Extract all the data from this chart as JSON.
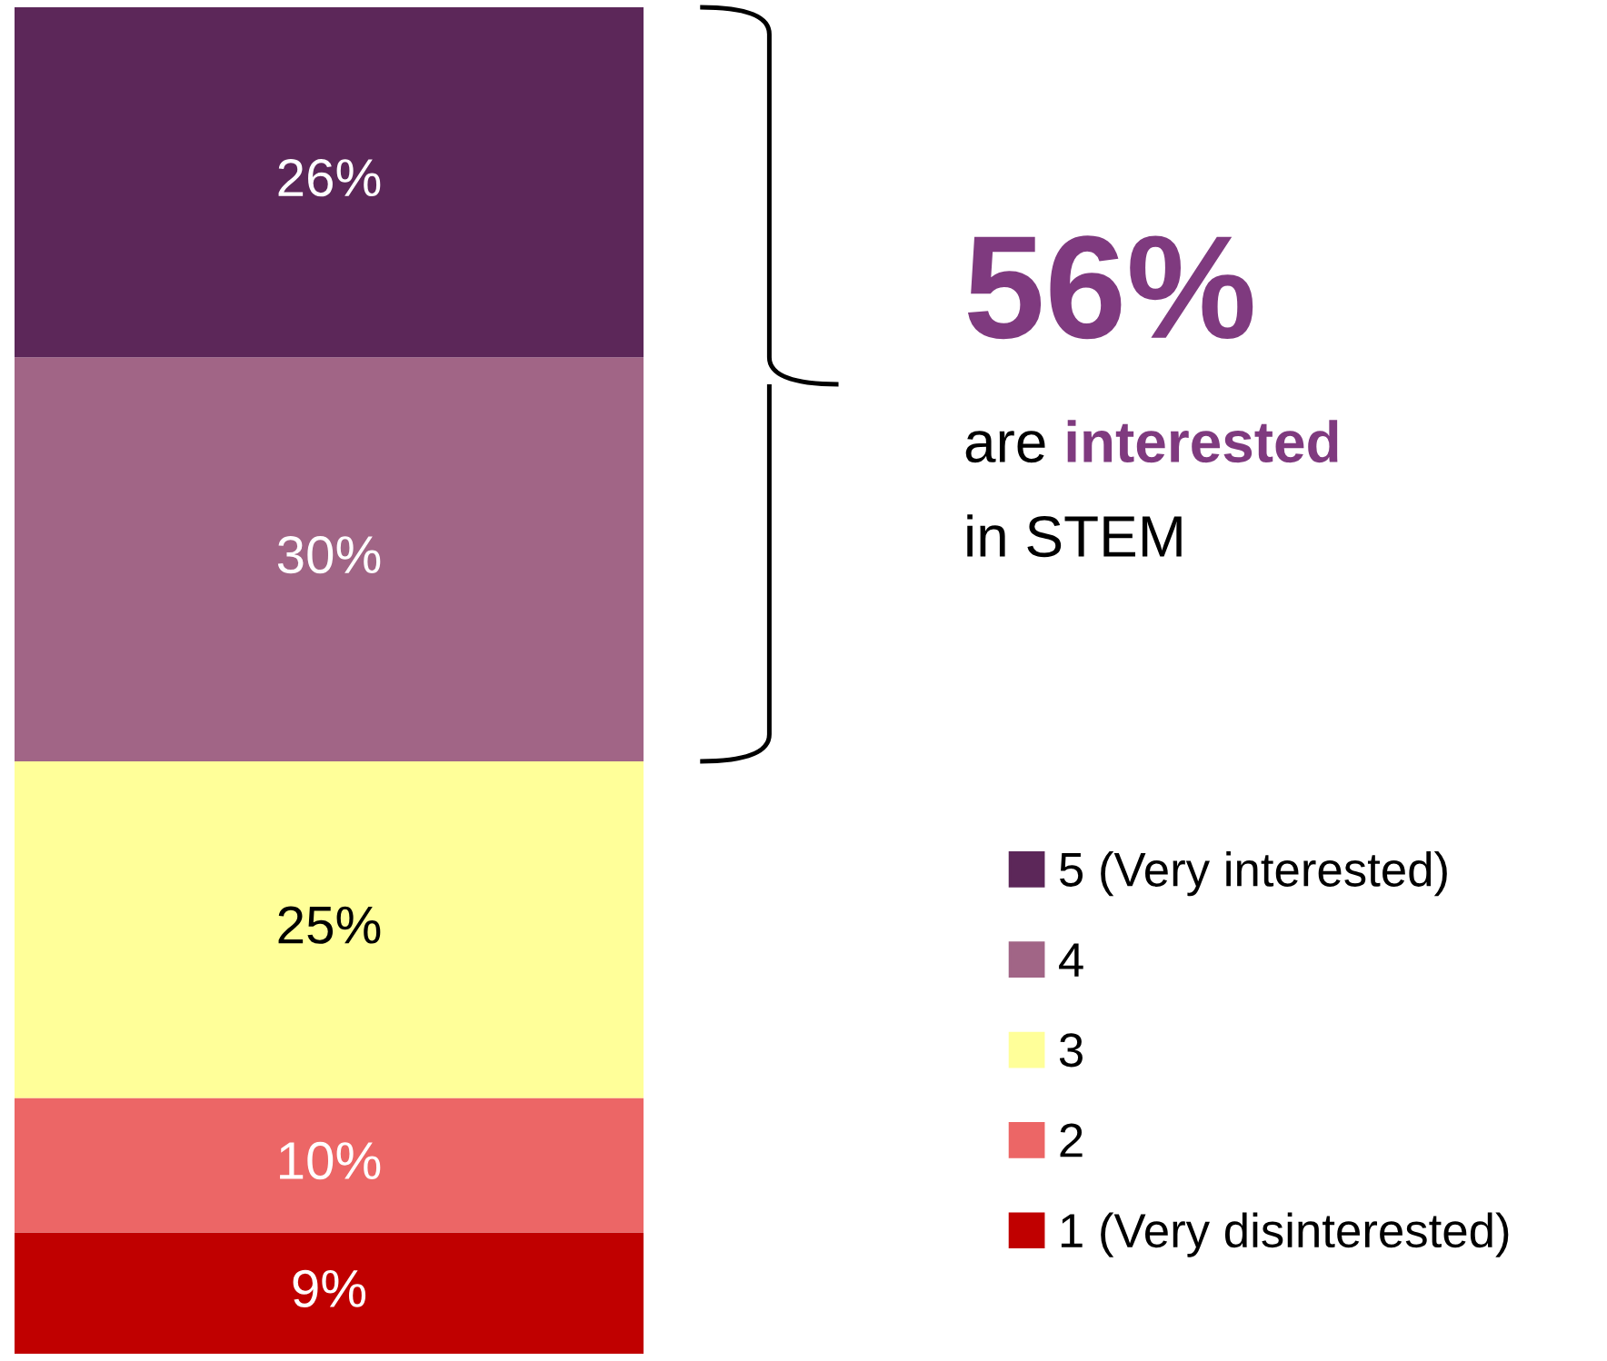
{
  "chart_data": {
    "type": "bar",
    "stacked": true,
    "categories": [
      null
    ],
    "series": [
      {
        "name": "1 (Very disinterested)",
        "color": "#c00000",
        "values": [
          9
        ],
        "value_labels": [
          "9%"
        ]
      },
      {
        "name": "2",
        "color": "#ec6666",
        "values": [
          10
        ],
        "value_labels": [
          "10%"
        ]
      },
      {
        "name": "3",
        "color": "#ffff99",
        "values": [
          25
        ],
        "value_labels": [
          "25%"
        ]
      },
      {
        "name": "4",
        "color": "#a16586",
        "values": [
          30
        ],
        "value_labels": [
          "30%"
        ]
      },
      {
        "name": "5 (Very interested)",
        "color": "#5c2759",
        "values": [
          26
        ],
        "value_labels": [
          "26%"
        ]
      }
    ],
    "annotations": [
      "56%",
      "are interested in STEM"
    ],
    "legend": "right",
    "grid": false
  }
}
